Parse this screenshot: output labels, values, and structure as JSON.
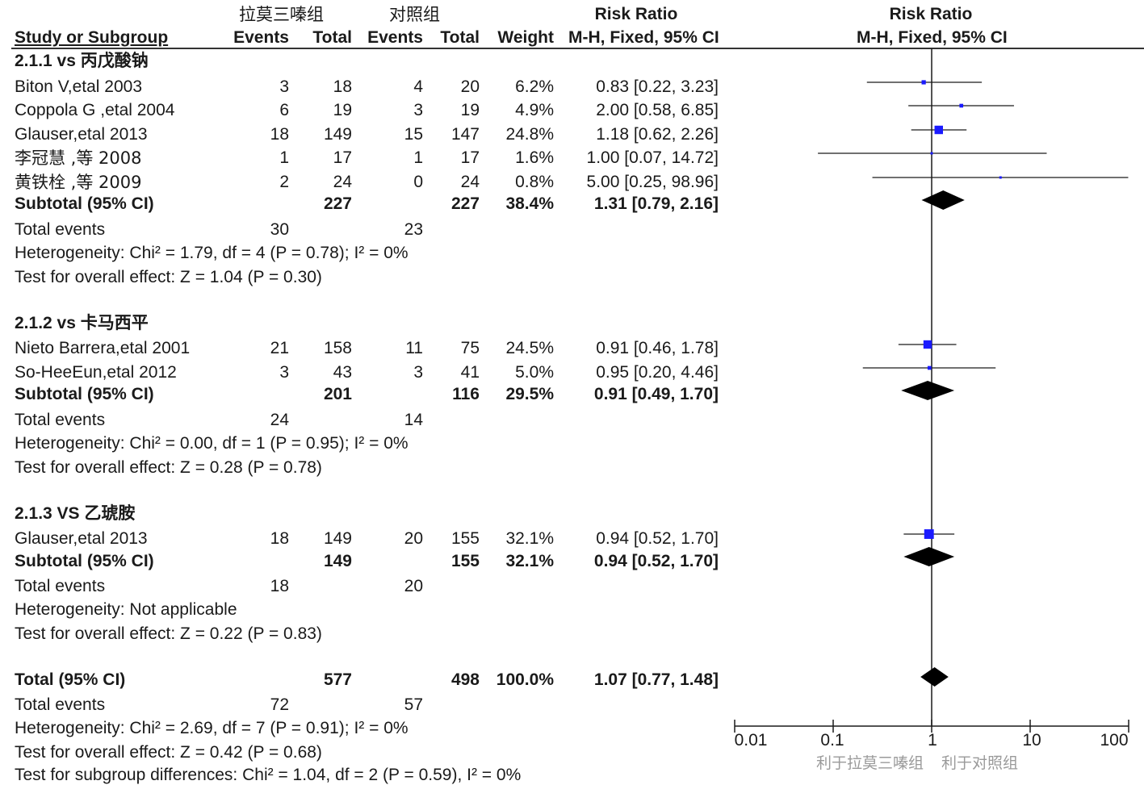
{
  "header": {
    "group_exp": "拉莫三嗪组",
    "group_ctrl": "对照组",
    "rr_title": "Risk Ratio",
    "rr_method": "M-H, Fixed, 95% CI",
    "plot_title": "Risk Ratio",
    "plot_method": "M-H, Fixed, 95% CI",
    "study": "Study or Subgroup",
    "events1": "Events",
    "total1": "Total",
    "events2": "Events",
    "total2": "Total",
    "weight": "Weight"
  },
  "subgroups": [
    {
      "title": "2.1.1 vs 丙戊酸钠",
      "studies": [
        {
          "name": "Biton V,etal 2003",
          "e1": "3",
          "t1": "18",
          "e2": "4",
          "t2": "20",
          "w": "6.2%",
          "ci": "0.83 [0.22, 3.23]"
        },
        {
          "name": "Coppola G ,etal 2004",
          "e1": "6",
          "t1": "19",
          "e2": "3",
          "t2": "19",
          "w": "4.9%",
          "ci": "2.00 [0.58, 6.85]"
        },
        {
          "name": "Glauser,etal 2013",
          "e1": "18",
          "t1": "149",
          "e2": "15",
          "t2": "147",
          "w": "24.8%",
          "ci": "1.18 [0.62, 2.26]"
        },
        {
          "name": "李冠慧 ,等 2008",
          "e1": "1",
          "t1": "17",
          "e2": "1",
          "t2": "17",
          "w": "1.6%",
          "ci": "1.00 [0.07, 14.72]"
        },
        {
          "name": "黄铁栓 ,等 2009",
          "e1": "2",
          "t1": "24",
          "e2": "0",
          "t2": "24",
          "w": "0.8%",
          "ci": "5.00 [0.25, 98.96]"
        }
      ],
      "subtotal": {
        "label": "Subtotal (95% CI)",
        "t1": "227",
        "t2": "227",
        "w": "38.4%",
        "ci": "1.31 [0.79, 2.16]"
      },
      "events": {
        "label": "Total events",
        "e1": "30",
        "e2": "23"
      },
      "het": "Heterogeneity: Chi² = 1.79, df = 4 (P = 0.78); I² = 0%",
      "test": "Test for overall effect: Z = 1.04 (P = 0.30)"
    },
    {
      "title": "2.1.2 vs 卡马西平",
      "studies": [
        {
          "name": "Nieto Barrera,etal 2001",
          "e1": "21",
          "t1": "158",
          "e2": "11",
          "t2": "75",
          "w": "24.5%",
          "ci": "0.91 [0.46, 1.78]"
        },
        {
          "name": "So-HeeEun,etal 2012",
          "e1": "3",
          "t1": "43",
          "e2": "3",
          "t2": "41",
          "w": "5.0%",
          "ci": "0.95 [0.20, 4.46]"
        }
      ],
      "subtotal": {
        "label": "Subtotal (95% CI)",
        "t1": "201",
        "t2": "116",
        "w": "29.5%",
        "ci": "0.91 [0.49, 1.70]"
      },
      "events": {
        "label": "Total events",
        "e1": "24",
        "e2": "14"
      },
      "het": "Heterogeneity: Chi² = 0.00, df = 1 (P = 0.95); I² = 0%",
      "test": "Test for overall effect: Z = 0.28 (P = 0.78)"
    },
    {
      "title": "2.1.3 VS 乙琥胺",
      "studies": [
        {
          "name": "Glauser,etal 2013",
          "e1": "18",
          "t1": "149",
          "e2": "20",
          "t2": "155",
          "w": "32.1%",
          "ci": "0.94 [0.52, 1.70]"
        }
      ],
      "subtotal": {
        "label": "Subtotal (95% CI)",
        "t1": "149",
        "t2": "155",
        "w": "32.1%",
        "ci": "0.94 [0.52, 1.70]"
      },
      "events": {
        "label": "Total events",
        "e1": "18",
        "e2": "20"
      },
      "het": "Heterogeneity: Not applicable",
      "test": "Test for overall effect: Z = 0.22 (P = 0.83)"
    }
  ],
  "total": {
    "label": "Total (95% CI)",
    "t1": "577",
    "t2": "498",
    "w": "100.0%",
    "ci": "1.07 [0.77, 1.48]",
    "events": {
      "label": "Total events",
      "e1": "72",
      "e2": "57"
    },
    "het": "Heterogeneity: Chi² = 2.69, df = 7 (P = 0.91); I² = 0%",
    "test": "Test for overall effect: Z = 0.42 (P = 0.68)",
    "subgroup_diff": "Test for subgroup differences: Chi² = 1.04, df = 2 (P = 0.59), I² = 0%"
  },
  "axis": {
    "ticks": [
      "0.01",
      "0.1",
      "1",
      "10",
      "100"
    ],
    "favours_left": "利于拉莫三嗪组",
    "favours_right": "利于对照组"
  },
  "chart_data": {
    "type": "forest",
    "scale": "log",
    "xlim": [
      0.01,
      100
    ],
    "reference_line": 1,
    "title": "Risk Ratio",
    "method": "M-H, Fixed, 95% CI",
    "colors": {
      "study_marker": "#1a1aff",
      "summary_diamond": "#000000",
      "lines": "#1a1a1a"
    },
    "studies": [
      {
        "subgroup": "2.1.1",
        "name": "Biton V,etal 2003",
        "rr": 0.83,
        "lo": 0.22,
        "hi": 3.23,
        "weight": 6.2
      },
      {
        "subgroup": "2.1.1",
        "name": "Coppola G ,etal 2004",
        "rr": 2.0,
        "lo": 0.58,
        "hi": 6.85,
        "weight": 4.9
      },
      {
        "subgroup": "2.1.1",
        "name": "Glauser,etal 2013",
        "rr": 1.18,
        "lo": 0.62,
        "hi": 2.26,
        "weight": 24.8
      },
      {
        "subgroup": "2.1.1",
        "name": "李冠慧 ,等 2008",
        "rr": 1.0,
        "lo": 0.07,
        "hi": 14.72,
        "weight": 1.6
      },
      {
        "subgroup": "2.1.1",
        "name": "黄铁栓 ,等 2009",
        "rr": 5.0,
        "lo": 0.25,
        "hi": 98.96,
        "weight": 0.8
      },
      {
        "subgroup": "2.1.2",
        "name": "Nieto Barrera,etal 2001",
        "rr": 0.91,
        "lo": 0.46,
        "hi": 1.78,
        "weight": 24.5
      },
      {
        "subgroup": "2.1.2",
        "name": "So-HeeEun,etal 2012",
        "rr": 0.95,
        "lo": 0.2,
        "hi": 4.46,
        "weight": 5.0
      },
      {
        "subgroup": "2.1.3",
        "name": "Glauser,etal 2013",
        "rr": 0.94,
        "lo": 0.52,
        "hi": 1.7,
        "weight": 32.1
      }
    ],
    "summaries": [
      {
        "name": "Subtotal 2.1.1",
        "rr": 1.31,
        "lo": 0.79,
        "hi": 2.16
      },
      {
        "name": "Subtotal 2.1.2",
        "rr": 0.91,
        "lo": 0.49,
        "hi": 1.7
      },
      {
        "name": "Subtotal 2.1.3",
        "rr": 0.94,
        "lo": 0.52,
        "hi": 1.7
      },
      {
        "name": "Total",
        "rr": 1.07,
        "lo": 0.77,
        "hi": 1.48
      }
    ]
  }
}
